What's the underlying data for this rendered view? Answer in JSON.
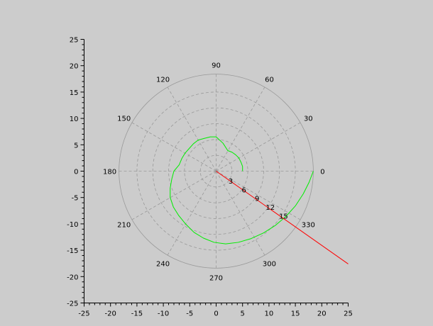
{
  "figure": {
    "background_color": "#cccccc"
  },
  "chart_data": {
    "type": "line",
    "title": "",
    "xlabel": "",
    "ylabel": "",
    "xlim": [
      -25,
      25
    ],
    "ylim": [
      -25,
      25
    ],
    "x_ticks": [
      -25,
      -20,
      -15,
      -10,
      -5,
      0,
      5,
      10,
      15,
      20,
      25
    ],
    "y_ticks": [
      25,
      20,
      15,
      10,
      5,
      0,
      -5,
      -10,
      -15,
      -20,
      -25
    ],
    "x_tick_labels": [
      "-25",
      "-20",
      "-15",
      "-10",
      "-5",
      "0",
      "5",
      "10",
      "15",
      "20",
      "25"
    ],
    "y_tick_labels": [
      "25",
      "20",
      "15",
      "10",
      "5",
      "0",
      "-5",
      "-10",
      "-15",
      "-20",
      "-25"
    ],
    "grid": false,
    "polar_grid": {
      "color": "#999999",
      "circle_radii": [
        3,
        6,
        9,
        12,
        15,
        18.4
      ],
      "radial_labels": [
        "3",
        "6",
        "9",
        "12",
        "15"
      ],
      "angles_deg": [
        0,
        30,
        60,
        90,
        120,
        150,
        180,
        210,
        240,
        270,
        300,
        330
      ],
      "angle_labels": [
        "0",
        "30",
        "60",
        "90",
        "120",
        "150",
        "180",
        "210",
        "240",
        "270",
        "300",
        "330"
      ]
    },
    "series": [
      {
        "color": "#00ee00",
        "points": [
          [
            5.0,
            0.0
          ],
          [
            5.0,
            0.9
          ],
          [
            4.7,
            1.7
          ],
          [
            4.3,
            2.5
          ],
          [
            3.7,
            3.1
          ],
          [
            3.0,
            3.6
          ],
          [
            2.2,
            3.9
          ],
          [
            1.3,
            5.3
          ],
          [
            0.0,
            6.5
          ],
          [
            -1.1,
            6.5
          ],
          [
            -2.3,
            6.2
          ],
          [
            -3.4,
            5.9
          ],
          [
            -4.3,
            5.2
          ],
          [
            -5.1,
            4.3
          ],
          [
            -5.9,
            3.4
          ],
          [
            -6.5,
            2.4
          ],
          [
            -7.0,
            1.2
          ],
          [
            -8.0,
            0.0
          ],
          [
            -8.4,
            -1.5
          ],
          [
            -8.7,
            -3.2
          ],
          [
            -8.7,
            -5.0
          ],
          [
            -8.1,
            -6.8
          ],
          [
            -7.1,
            -8.4
          ],
          [
            -5.8,
            -10.0
          ],
          [
            -4.2,
            -11.6
          ],
          [
            -2.4,
            -12.7
          ],
          [
            -0.4,
            -13.5
          ],
          [
            1.8,
            -13.8
          ],
          [
            4.2,
            -13.5
          ],
          [
            6.6,
            -12.8
          ],
          [
            9.0,
            -11.7
          ],
          [
            11.2,
            -10.3
          ],
          [
            13.2,
            -8.6
          ],
          [
            15.0,
            -6.6
          ],
          [
            16.5,
            -4.3
          ],
          [
            17.6,
            -2.1
          ],
          [
            18.4,
            0.0
          ]
        ]
      },
      {
        "color": "#ff0000",
        "points": [
          [
            0,
            0
          ],
          [
            25,
            -17.6
          ]
        ]
      }
    ]
  }
}
